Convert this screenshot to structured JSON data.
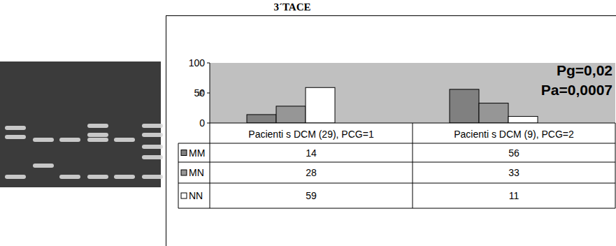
{
  "chart_data": {
    "type": "bar",
    "title": "3´TACE",
    "y_label": "%",
    "categories": [
      "Pacienti s DCM (29), PCG=1",
      "Pacienti s DCM (9), PCG=2"
    ],
    "series": [
      {
        "name": "MM",
        "color": "#808080",
        "values": [
          14,
          56
        ]
      },
      {
        "name": "MN",
        "color": "#969696",
        "values": [
          28,
          33
        ]
      },
      {
        "name": "NN",
        "color": "#ffffff",
        "values": [
          59,
          11
        ]
      }
    ],
    "annotations": [
      "Pg=0,02",
      "Pa=0,0007"
    ],
    "ylim": [
      0,
      100
    ],
    "yticks": [
      0,
      50,
      100
    ],
    "grid": false
  }
}
